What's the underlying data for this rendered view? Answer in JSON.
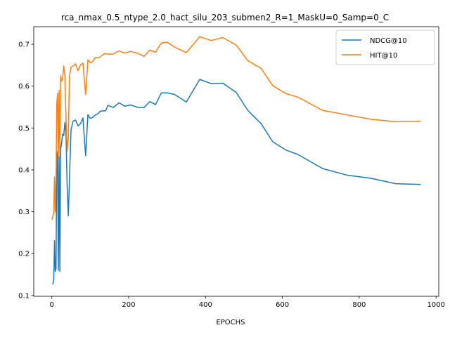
{
  "chart_data": {
    "type": "line",
    "title": "rca_nmax_0.5_ntype_2.0_hact_silu_203_submen2_R=1_MaskU=0_Samp=0_C",
    "xlabel": "EPOCHS",
    "ylabel": "",
    "xlim": [
      -47,
      1007
    ],
    "ylim": [
      0.098,
      0.742
    ],
    "xticks": [
      0,
      200,
      400,
      600,
      800,
      1000
    ],
    "yticks": [
      0.1,
      0.2,
      0.3,
      0.4,
      0.5,
      0.6,
      0.7
    ],
    "xtick_labels": [
      "0",
      "200",
      "400",
      "600",
      "800",
      "1000"
    ],
    "ytick_labels": [
      "0.1",
      "0.2",
      "0.3",
      "0.4",
      "0.5",
      "0.6",
      "0.7"
    ],
    "grid": false,
    "legend_position": "top-right",
    "series": [
      {
        "name": "NDCG@10",
        "color": "#1f77b4",
        "x": [
          1,
          3,
          5,
          7,
          9,
          11,
          13,
          15,
          17,
          19,
          21,
          23,
          25,
          28,
          31,
          34,
          37,
          40,
          43,
          46,
          50,
          55,
          62,
          68,
          75,
          81,
          88,
          94,
          100,
          106,
          113,
          120,
          126,
          133,
          140,
          146,
          160,
          175,
          190,
          205,
          225,
          240,
          255,
          270,
          285,
          300,
          320,
          350,
          385,
          415,
          445,
          480,
          510,
          545,
          575,
          610,
          640,
          705,
          770,
          830,
          895,
          960
        ],
        "y": [
          0.129,
          0.128,
          0.136,
          0.231,
          0.157,
          0.165,
          0.445,
          0.43,
          0.16,
          0.43,
          0.157,
          0.45,
          0.46,
          0.485,
          0.482,
          0.513,
          0.485,
          0.358,
          0.29,
          0.38,
          0.495,
          0.516,
          0.519,
          0.505,
          0.511,
          0.524,
          0.434,
          0.532,
          0.523,
          0.525,
          0.531,
          0.534,
          0.54,
          0.541,
          0.541,
          0.554,
          0.549,
          0.56,
          0.552,
          0.555,
          0.549,
          0.549,
          0.563,
          0.556,
          0.584,
          0.584,
          0.58,
          0.562,
          0.616,
          0.606,
          0.607,
          0.585,
          0.542,
          0.51,
          0.467,
          0.447,
          0.437,
          0.403,
          0.387,
          0.38,
          0.367,
          0.365
        ]
      },
      {
        "name": "HIT@10",
        "color": "#ff7f0e",
        "x": [
          1,
          3,
          5,
          7,
          9,
          11,
          13,
          15,
          17,
          19,
          21,
          23,
          25,
          28,
          31,
          34,
          37,
          40,
          43,
          46,
          50,
          55,
          62,
          68,
          75,
          81,
          88,
          94,
          100,
          106,
          113,
          120,
          126,
          133,
          140,
          146,
          160,
          175,
          190,
          205,
          225,
          240,
          255,
          270,
          285,
          300,
          320,
          350,
          385,
          415,
          445,
          480,
          510,
          545,
          575,
          610,
          640,
          705,
          770,
          830,
          895,
          960
        ],
        "y": [
          0.281,
          0.291,
          0.295,
          0.383,
          0.3,
          0.38,
          0.559,
          0.583,
          0.43,
          0.59,
          0.43,
          0.625,
          0.612,
          0.618,
          0.648,
          0.625,
          0.52,
          0.445,
          0.48,
          0.625,
          0.645,
          0.648,
          0.653,
          0.637,
          0.651,
          0.655,
          0.58,
          0.663,
          0.656,
          0.658,
          0.668,
          0.668,
          0.67,
          0.675,
          0.678,
          0.676,
          0.677,
          0.684,
          0.679,
          0.683,
          0.678,
          0.671,
          0.686,
          0.681,
          0.703,
          0.705,
          0.693,
          0.68,
          0.718,
          0.709,
          0.716,
          0.698,
          0.661,
          0.642,
          0.601,
          0.582,
          0.574,
          0.542,
          0.531,
          0.521,
          0.515,
          0.516
        ]
      }
    ]
  }
}
